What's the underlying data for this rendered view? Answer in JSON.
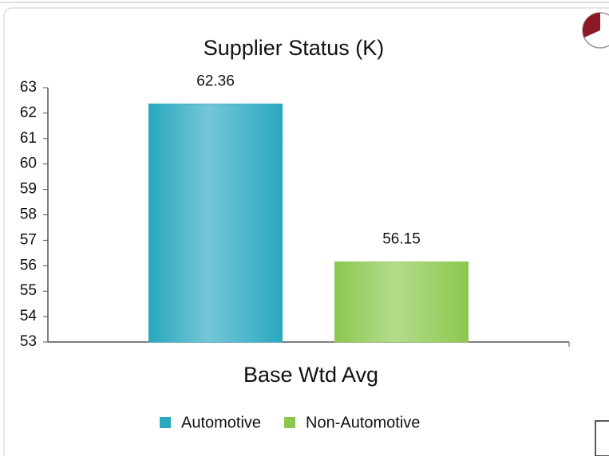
{
  "chart_data": {
    "type": "bar",
    "title": "Supplier Status (K)",
    "categories": [
      "Base Wtd Avg"
    ],
    "series": [
      {
        "name": "Automotive",
        "color": "#2aa8c0",
        "values": [
          62.36
        ]
      },
      {
        "name": "Non-Automotive",
        "color": "#8cc84f",
        "values": [
          56.15
        ]
      }
    ],
    "ylim": [
      53,
      63
    ],
    "yticks": [
      53,
      54,
      55,
      56,
      57,
      58,
      59,
      60,
      61,
      62,
      63
    ],
    "grid": false,
    "legend": "bottom"
  }
}
